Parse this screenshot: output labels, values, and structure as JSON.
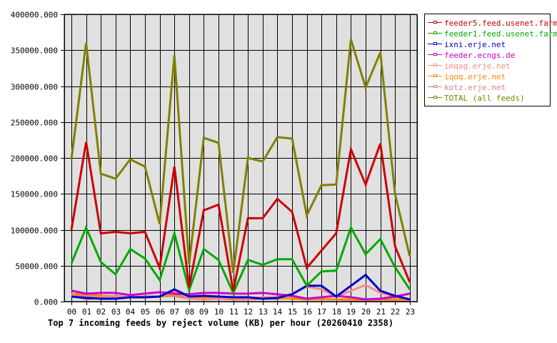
{
  "chart_data": {
    "type": "line",
    "title": "Top 7 incoming feeds by reject volume (KB) per hour (20260410 2358)",
    "xlabel": "",
    "ylabel": "",
    "ylim": [
      0,
      400000
    ],
    "yticks": [
      "0.000",
      "50000.000",
      "100000.000",
      "150000.000",
      "200000.000",
      "250000.000",
      "300000.000",
      "350000.000",
      "400000.000"
    ],
    "grid": true,
    "legend_position": "right",
    "x": [
      "00",
      "01",
      "02",
      "03",
      "04",
      "05",
      "06",
      "07",
      "08",
      "09",
      "10",
      "11",
      "12",
      "13",
      "14",
      "15",
      "16",
      "17",
      "18",
      "19",
      "20",
      "21",
      "22",
      "23"
    ],
    "series": [
      {
        "name": "feeder5.feed.usenet.farm",
        "color": "#cc0000",
        "values": [
          100000,
          222000,
          95000,
          97000,
          95000,
          97000,
          47000,
          188000,
          20000,
          127000,
          135000,
          15000,
          116000,
          116000,
          143000,
          125000,
          47000,
          71000,
          95000,
          212000,
          163000,
          220000,
          77000,
          27000
        ]
      },
      {
        "name": "feeder1.feed.usenet.farm",
        "color": "#00aa00",
        "values": [
          53000,
          103000,
          55000,
          38000,
          73000,
          60000,
          30000,
          95000,
          16000,
          73000,
          58000,
          12000,
          58000,
          51000,
          59000,
          59000,
          22000,
          42000,
          43000,
          103000,
          66000,
          87000,
          48000,
          17000
        ]
      },
      {
        "name": "ixni.erje.net",
        "color": "#0000cc",
        "values": [
          7000,
          5000,
          4000,
          4000,
          6000,
          6000,
          7000,
          17000,
          7000,
          8000,
          7000,
          6000,
          6000,
          4000,
          5000,
          10000,
          22000,
          22000,
          7000,
          22000,
          37000,
          15000,
          8000,
          3000
        ]
      },
      {
        "name": "feeder.ecngs.de",
        "color": "#cc00cc",
        "values": [
          15000,
          11000,
          12000,
          12000,
          9000,
          11000,
          13000,
          11000,
          10000,
          12000,
          12000,
          11000,
          11000,
          12000,
          10000,
          8000,
          4000,
          6000,
          8000,
          6000,
          3000,
          4000,
          7000,
          11000
        ]
      },
      {
        "name": "imqag.erje.net",
        "color": "#ff8888",
        "values": [
          9000,
          3000,
          6000,
          7000,
          6000,
          6000,
          7000,
          14000,
          4000,
          3000,
          4000,
          5000,
          4000,
          6000,
          6000,
          11000,
          21000,
          17000,
          7000,
          15000,
          23000,
          12000,
          7000,
          2000
        ]
      },
      {
        "name": "iqoq.erje.net",
        "color": "#ff8800",
        "values": [
          10000,
          11000,
          8000,
          7000,
          6000,
          7000,
          7000,
          10000,
          5000,
          5000,
          5000,
          4000,
          4000,
          4000,
          5000,
          4000,
          3000,
          3000,
          3000,
          3000,
          3000,
          3000,
          3000,
          2000
        ]
      },
      {
        "name": "kotz.erje.net",
        "color": "#cc8888",
        "values": [
          8000,
          8000,
          6000,
          8000,
          6000,
          6000,
          7000,
          8000,
          4000,
          4000,
          4000,
          3000,
          3000,
          4000,
          4000,
          5000,
          3000,
          3000,
          3000,
          2000,
          2000,
          2000,
          2000,
          2000
        ]
      },
      {
        "name": "TOTAL (all feeds)",
        "color": "#808000",
        "values": [
          198000,
          360000,
          178000,
          171000,
          198000,
          188000,
          108000,
          343000,
          52000,
          228000,
          221000,
          40000,
          200000,
          195000,
          229000,
          227000,
          120000,
          162000,
          163000,
          365000,
          298000,
          347000,
          150000,
          63000
        ]
      }
    ]
  },
  "legend": {
    "items": [
      {
        "label": "feeder5.feed.usenet.farm",
        "color": "#cc0000"
      },
      {
        "label": "feeder1.feed.usenet.farm",
        "color": "#00aa00"
      },
      {
        "label": "ixni.erje.net",
        "color": "#0000cc"
      },
      {
        "label": "feeder.ecngs.de",
        "color": "#cc00cc"
      },
      {
        "label": "imqag.erje.net",
        "color": "#ff8888"
      },
      {
        "label": "iqoq.erje.net",
        "color": "#ff8800"
      },
      {
        "label": "kotz.erje.net",
        "color": "#cc8888"
      },
      {
        "label": "TOTAL (all feeds)",
        "color": "#808000"
      }
    ]
  },
  "colors": {
    "plot_background": "#e0e0e0",
    "grid": "#000000"
  }
}
